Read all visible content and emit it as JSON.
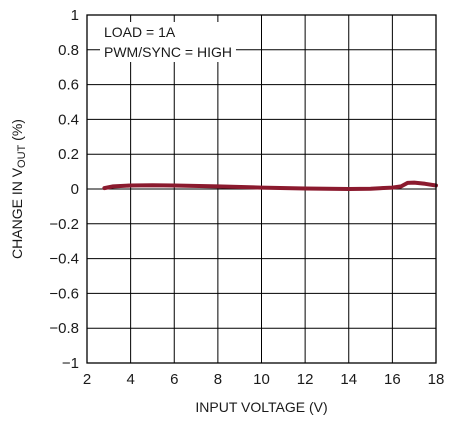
{
  "chart_data": {
    "type": "line",
    "xlabel": "INPUT VOLTAGE (V)",
    "ylabel": {
      "prefix": "CHANGE IN V",
      "subscript": "OUT",
      "suffix": " (%)"
    },
    "xlim": [
      2,
      18
    ],
    "ylim": [
      -1,
      1
    ],
    "xticks": [
      2,
      4,
      6,
      8,
      10,
      12,
      14,
      16,
      18
    ],
    "yticks": [
      1,
      0.8,
      0.6,
      0.4,
      0.2,
      0,
      -0.2,
      -0.4,
      -0.6,
      -0.8,
      -1
    ],
    "xtick_labels": [
      "2",
      "4",
      "6",
      "8",
      "10",
      "12",
      "14",
      "16",
      "18"
    ],
    "ytick_labels": [
      "1",
      "0.8",
      "0.6",
      "0.4",
      "0.2",
      "0",
      "−0.2",
      "−0.4",
      "−0.6",
      "−0.8",
      "−1"
    ],
    "grid": true,
    "annotations": [
      "LOAD = 1A",
      "PWM/SYNC = HIGH"
    ],
    "series": [
      {
        "color": "#8b1a2e",
        "x": [
          2.8,
          3.2,
          4,
          5,
          6,
          8,
          10,
          12,
          14,
          15,
          16,
          16.4,
          16.7,
          17,
          17.5,
          18
        ],
        "y": [
          0.005,
          0.015,
          0.02,
          0.022,
          0.02,
          0.015,
          0.008,
          0.003,
          0.0,
          0.002,
          0.008,
          0.015,
          0.035,
          0.037,
          0.03,
          0.02
        ]
      }
    ]
  }
}
